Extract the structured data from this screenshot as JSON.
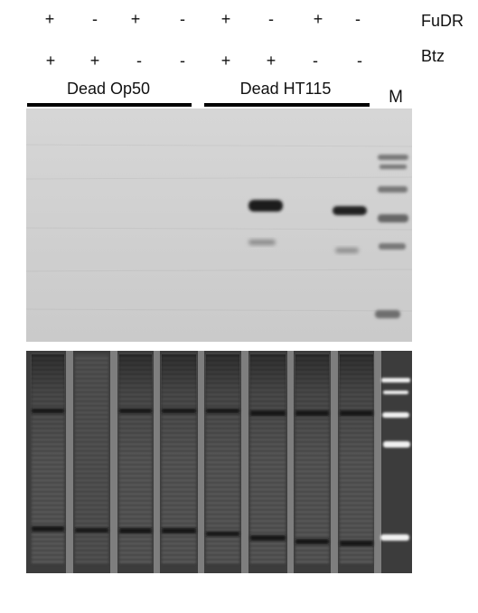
{
  "rows": {
    "fudr": {
      "name": "FuDR",
      "signs": [
        "+",
        "-",
        "+",
        "-",
        "+",
        "-",
        "+",
        "-"
      ]
    },
    "btz": {
      "name": "Btz",
      "signs": [
        "+",
        "+",
        "-",
        "-",
        "+",
        "+",
        "-",
        "-"
      ]
    }
  },
  "groups": [
    "Dead Op50",
    "Dead HT115"
  ],
  "marker": "M",
  "colors": {
    "blot_bg": "#cfcfcf",
    "band_dark": "#222222",
    "gel_bg": "#3c3c3c",
    "bar": "#000000"
  }
}
